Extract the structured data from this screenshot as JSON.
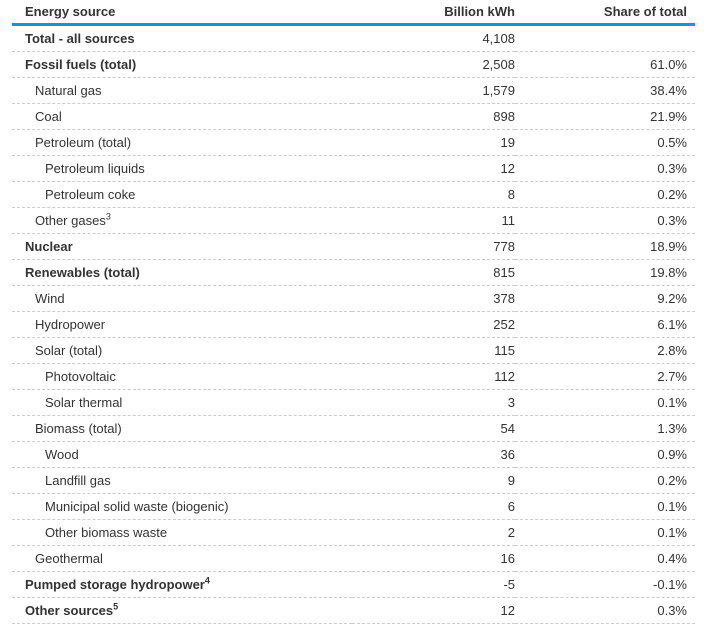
{
  "chart_data": {
    "type": "table",
    "columns": [
      "Energy source",
      "Billion kWh",
      "Share of total"
    ],
    "rows": [
      {
        "label": "Total - all sources",
        "footnote": "",
        "kwh": "4,108",
        "share": "",
        "bold": true,
        "indent": 0
      },
      {
        "label": "Fossil fuels (total)",
        "footnote": "",
        "kwh": "2,508",
        "share": "61.0%",
        "bold": true,
        "indent": 0
      },
      {
        "label": "Natural gas",
        "footnote": "",
        "kwh": "1,579",
        "share": "38.4%",
        "bold": false,
        "indent": 1
      },
      {
        "label": "Coal",
        "footnote": "",
        "kwh": "898",
        "share": "21.9%",
        "bold": false,
        "indent": 1
      },
      {
        "label": "Petroleum (total)",
        "footnote": "",
        "kwh": "19",
        "share": "0.5%",
        "bold": false,
        "indent": 1
      },
      {
        "label": "Petroleum liquids",
        "footnote": "",
        "kwh": "12",
        "share": "0.3%",
        "bold": false,
        "indent": 2
      },
      {
        "label": "Petroleum coke",
        "footnote": "",
        "kwh": "8",
        "share": "0.2%",
        "bold": false,
        "indent": 2
      },
      {
        "label": "Other gases",
        "footnote": "3",
        "kwh": "11",
        "share": "0.3%",
        "bold": false,
        "indent": 1
      },
      {
        "label": "Nuclear",
        "footnote": "",
        "kwh": "778",
        "share": "18.9%",
        "bold": true,
        "indent": 0
      },
      {
        "label": "Renewables (total)",
        "footnote": "",
        "kwh": "815",
        "share": "19.8%",
        "bold": true,
        "indent": 0
      },
      {
        "label": "Wind",
        "footnote": "",
        "kwh": "378",
        "share": "9.2%",
        "bold": false,
        "indent": 1
      },
      {
        "label": "Hydropower",
        "footnote": "",
        "kwh": "252",
        "share": "6.1%",
        "bold": false,
        "indent": 1
      },
      {
        "label": "Solar (total)",
        "footnote": "",
        "kwh": "115",
        "share": "2.8%",
        "bold": false,
        "indent": 1
      },
      {
        "label": "Photovoltaic",
        "footnote": "",
        "kwh": "112",
        "share": "2.7%",
        "bold": false,
        "indent": 2
      },
      {
        "label": "Solar thermal",
        "footnote": "",
        "kwh": "3",
        "share": "0.1%",
        "bold": false,
        "indent": 2
      },
      {
        "label": "Biomass (total)",
        "footnote": "",
        "kwh": "54",
        "share": "1.3%",
        "bold": false,
        "indent": 1
      },
      {
        "label": "Wood",
        "footnote": "",
        "kwh": "36",
        "share": "0.9%",
        "bold": false,
        "indent": 2
      },
      {
        "label": "Landfill gas",
        "footnote": "",
        "kwh": "9",
        "share": "0.2%",
        "bold": false,
        "indent": 2
      },
      {
        "label": "Municipal solid waste (biogenic)",
        "footnote": "",
        "kwh": "6",
        "share": "0.1%",
        "bold": false,
        "indent": 2
      },
      {
        "label": "Other biomass waste",
        "footnote": "",
        "kwh": "2",
        "share": "0.1%",
        "bold": false,
        "indent": 2
      },
      {
        "label": "Geothermal",
        "footnote": "",
        "kwh": "16",
        "share": "0.4%",
        "bold": false,
        "indent": 1
      },
      {
        "label": "Pumped storage hydropower",
        "footnote": "4",
        "kwh": "-5",
        "share": "-0.1%",
        "bold": true,
        "indent": 0
      },
      {
        "label": "Other sources",
        "footnote": "5",
        "kwh": "12",
        "share": "0.3%",
        "bold": true,
        "indent": 0
      }
    ]
  },
  "colors": {
    "header_rule": "#1496d2",
    "text": "#333333",
    "row_divider": "#cccccc"
  }
}
